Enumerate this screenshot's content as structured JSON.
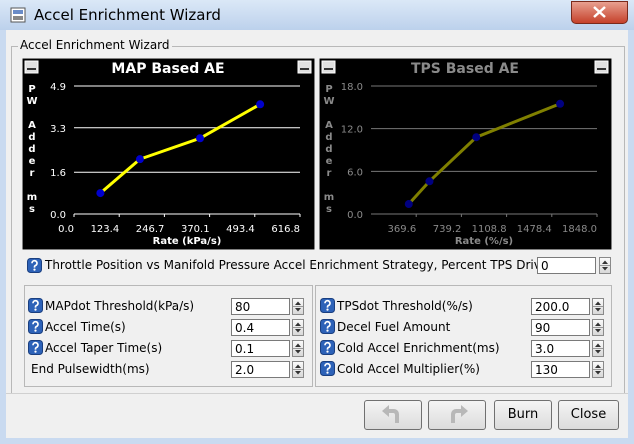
{
  "window": {
    "title": "Accel Enrichment Wizard"
  },
  "group": {
    "title": "Accel Enrichment Wizard"
  },
  "charts": [
    {
      "type": "line",
      "title": "MAP Based AE",
      "ylabel": "PW Adder ms",
      "xlabel": "Rate (kPa/s)",
      "x": [
        72,
        180,
        344,
        508
      ],
      "values": [
        0.8,
        2.1,
        2.9,
        4.2
      ],
      "color": "#ffff00",
      "marker_color": "#0000cc",
      "grid": true,
      "enabled": true,
      "xlim": [
        0,
        616.8
      ],
      "ylim": [
        0,
        4.9
      ],
      "xticks": [
        {
          "value": 0,
          "label": "0.0"
        },
        123.4,
        246.7,
        370.1,
        493.4,
        616.8
      ],
      "yticks": [
        {
          "value": 0,
          "label": "0.0"
        },
        1.6,
        3.3,
        4.9
      ]
    },
    {
      "type": "line",
      "title": "TPS Based AE",
      "ylabel": "PW Adder ms",
      "xlabel": "Rate (%/s)",
      "x": [
        309,
        478,
        861,
        1546
      ],
      "values": [
        1.4,
        4.6,
        10.8,
        15.5
      ],
      "color": "#808000",
      "marker_color": "#000080",
      "grid": true,
      "enabled": false,
      "xlim": [
        0,
        1848
      ],
      "ylim": [
        0,
        18
      ],
      "xticks": [
        369.6,
        739.2,
        1108.8,
        1478.4,
        {
          "value": 1848,
          "label": "1848.0"
        }
      ],
      "yticks": [
        {
          "value": 0,
          "label": "0.0"
        },
        {
          "value": 6,
          "label": "6.0"
        },
        {
          "value": 12,
          "label": "12.0"
        },
        {
          "value": 18,
          "label": "18.0"
        }
      ]
    }
  ],
  "strategy": {
    "label": "Throttle Position vs Manifold Pressure Accel Enrichment Strategy, Percent TPS Driven(%)",
    "value": "0",
    "help": true
  },
  "fields_left": [
    {
      "label": "MAPdot Threshold(kPa/s)",
      "value": "80",
      "help": true
    },
    {
      "label": "Accel Time(s)",
      "value": "0.4",
      "help": true
    },
    {
      "label": "Accel Taper Time(s)",
      "value": "0.1",
      "help": true
    },
    {
      "label": "End Pulsewidth(ms)",
      "value": "2.0",
      "help": false
    }
  ],
  "fields_right": [
    {
      "label": "TPSdot Threshold(%/s)",
      "value": "200.0",
      "help": true
    },
    {
      "label": "Decel Fuel Amount",
      "value": "90",
      "help": true
    },
    {
      "label": "Cold Accel Enrichment(ms)",
      "value": "3.0",
      "help": true
    },
    {
      "label": "Cold Accel Multiplier(%)",
      "value": "130",
      "help": true
    }
  ],
  "buttons": {
    "burn": "Burn",
    "close": "Close"
  }
}
